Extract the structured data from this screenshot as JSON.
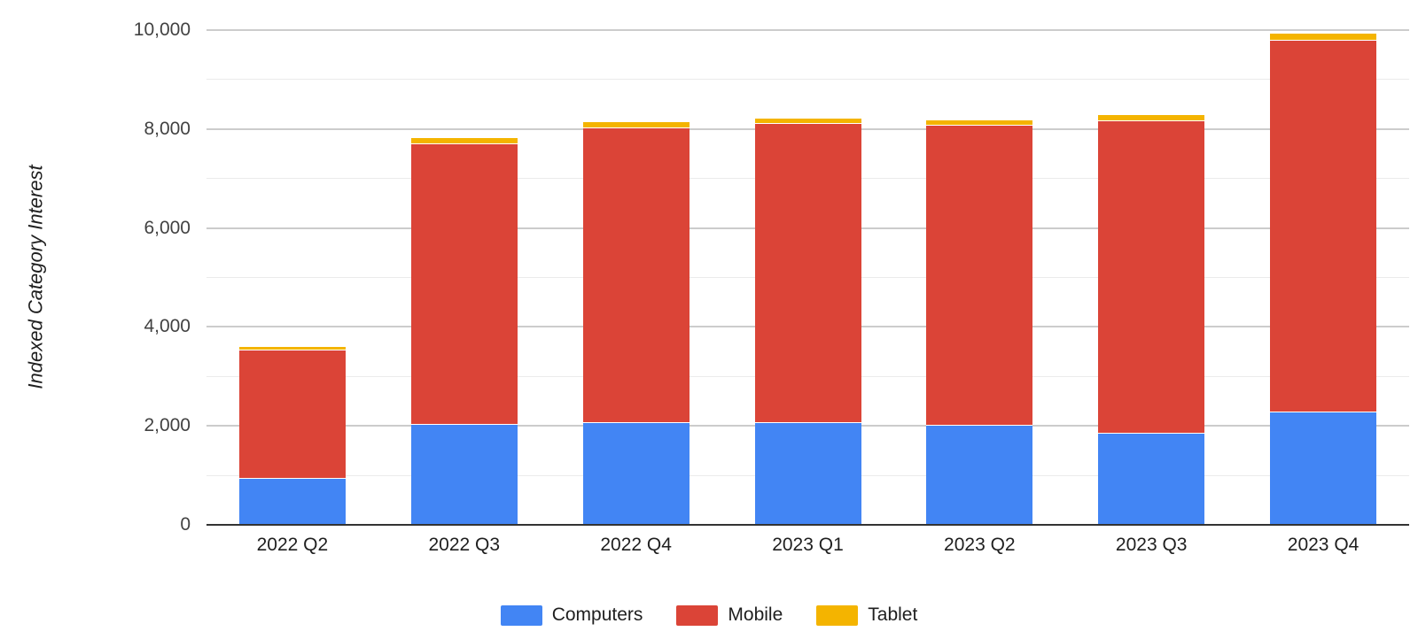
{
  "chart_data": {
    "type": "bar",
    "stacked": true,
    "title": "",
    "xlabel": "",
    "ylabel": "Indexed Category Interest",
    "ylim": [
      0,
      10000
    ],
    "y_major_ticks": [
      0,
      2000,
      4000,
      6000,
      8000,
      10000
    ],
    "y_major_tick_labels": [
      "0",
      "2,000",
      "4,000",
      "6,000",
      "8,000",
      "10,000"
    ],
    "y_minor_ticks": [
      1000,
      3000,
      5000,
      7000,
      9000
    ],
    "grid": "horizontal, major and minor lines on",
    "legend_position": "bottom-center",
    "categories": [
      "2022 Q2",
      "2022 Q3",
      "2022 Q4",
      "2023 Q1",
      "2023 Q2",
      "2023 Q3",
      "2023 Q4"
    ],
    "series": [
      {
        "name": "Computers",
        "color": "#4285F4",
        "values": [
          930,
          2030,
          2050,
          2060,
          2000,
          1840,
          2270
        ]
      },
      {
        "name": "Mobile",
        "color": "#DB4437",
        "values": [
          2590,
          5670,
          5970,
          6050,
          6070,
          6320,
          7520
        ]
      },
      {
        "name": "Tablet",
        "color": "#F4B400",
        "values": [
          70,
          120,
          120,
          100,
          110,
          130,
          140
        ]
      }
    ],
    "stack_totals": [
      3590,
      7820,
      8140,
      8210,
      8180,
      8290,
      9930
    ]
  },
  "colors": {
    "computers": "#4285F4",
    "mobile": "#DB4437",
    "tablet": "#F4B400"
  }
}
